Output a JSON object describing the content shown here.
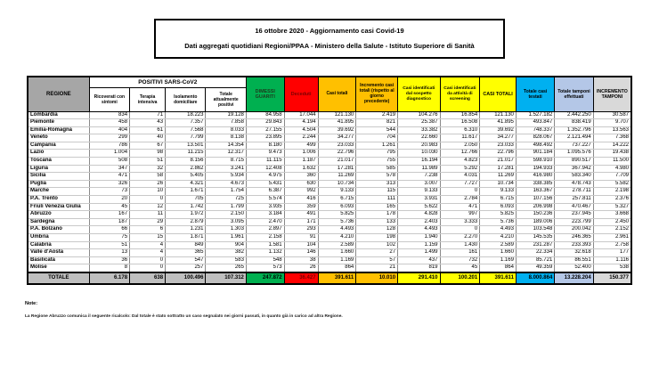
{
  "title": {
    "line1": "16 ottobre 2020 - Aggiornamento casi Covid-19",
    "line2": "Dati aggregati quotidiani Regioni/PPAA - Ministero della Salute - Istituto Superiore di Sanità"
  },
  "colors": {
    "header_gray": "#A6A6A6",
    "green": "#00B050",
    "red": "#FF0000",
    "orange": "#FFC000",
    "yellow": "#FFFF00",
    "cyan": "#00B0F0",
    "lavender": "#B4C7E7",
    "light_gray": "#D9D9D9",
    "totale_gray": "#BFBFBF"
  },
  "table": {
    "headers": {
      "regione": "REGIONE",
      "positivi_group": "POSITIVI SARS-CoV2",
      "sub": [
        "Ricoverati con sintomi",
        "Terapia intensiva",
        "Isolamento domiciliare",
        "Totale attualmente positivi"
      ],
      "dimessi": "DIMESSI GUARITI",
      "deceduti": "Deceduti",
      "casi_totali": "Casi totali",
      "incremento_casi": "Incremento casi totali (rispetto al giorno precedente)",
      "sospetto": "Casi identificati dal sospetto diagnostico",
      "screening": "Casi identificati da attività di screening",
      "casi_totali_2": "CASI TOTALI",
      "testati": "Totale casi testati",
      "tamponi": "Totale tamponi effettuati",
      "incremento_tamponi": "INCREMENTO TAMPONI"
    },
    "rows": [
      {
        "regione": "Lombardia",
        "values": [
          "834",
          "71",
          "18.223",
          "19.128",
          "84.958",
          "17.044",
          "121.130",
          "2.419",
          "104.276",
          "16.854",
          "121.130",
          "1.527.182",
          "2.442.250",
          "30.587"
        ]
      },
      {
        "regione": "Piemonte",
        "values": [
          "458",
          "43",
          "7.357",
          "7.858",
          "29.843",
          "4.194",
          "41.895",
          "821",
          "25.387",
          "16.508",
          "41.895",
          "493.847",
          "838.419",
          "9.707"
        ]
      },
      {
        "regione": "Emilia-Romagna",
        "values": [
          "404",
          "61",
          "7.568",
          "8.033",
          "27.155",
          "4.504",
          "39.692",
          "544",
          "33.382",
          "6.310",
          "39.692",
          "748.337",
          "1.352.796",
          "13.563"
        ]
      },
      {
        "regione": "Veneto",
        "values": [
          "299",
          "40",
          "7.799",
          "8.138",
          "23.895",
          "2.244",
          "34.277",
          "704",
          "22.660",
          "11.617",
          "34.277",
          "828.067",
          "2.121.494",
          "7.368"
        ]
      },
      {
        "regione": "Campania",
        "values": [
          "786",
          "67",
          "13.501",
          "14.354",
          "8.180",
          "499",
          "23.033",
          "1.261",
          "20.983",
          "2.050",
          "23.033",
          "498.492",
          "737.227",
          "14.222"
        ]
      },
      {
        "regione": "Lazio",
        "values": [
          "1.004",
          "98",
          "11.215",
          "12.317",
          "9.473",
          "1.006",
          "22.796",
          "795",
          "10.030",
          "12.766",
          "22.796",
          "901.184",
          "1.095.576",
          "19.438"
        ]
      },
      {
        "regione": "Toscana",
        "values": [
          "508",
          "51",
          "8.156",
          "8.715",
          "11.115",
          "1.187",
          "21.017",
          "755",
          "16.194",
          "4.823",
          "21.017",
          "598.910",
          "890.517",
          "11.500"
        ]
      },
      {
        "regione": "Liguria",
        "values": [
          "347",
          "32",
          "2.862",
          "3.241",
          "12.408",
          "1.632",
          "17.281",
          "585",
          "11.989",
          "5.292",
          "17.281",
          "194.933",
          "367.942",
          "4.980"
        ]
      },
      {
        "regione": "Sicilia",
        "values": [
          "471",
          "58",
          "5.405",
          "5.934",
          "4.975",
          "360",
          "11.269",
          "578",
          "7.238",
          "4.031",
          "11.269",
          "416.980",
          "583.340",
          "7.709"
        ]
      },
      {
        "regione": "Puglia",
        "values": [
          "326",
          "26",
          "4.321",
          "4.673",
          "5.431",
          "630",
          "10.734",
          "313",
          "3.007",
          "7.727",
          "10.734",
          "338.385",
          "478.743",
          "5.582"
        ]
      },
      {
        "regione": "Marche",
        "values": [
          "73",
          "10",
          "1.671",
          "1.754",
          "6.387",
          "992",
          "9.133",
          "115",
          "9.133",
          "0",
          "9.133",
          "163.367",
          "278.711",
          "2.198"
        ]
      },
      {
        "regione": "P.A. Trento",
        "values": [
          "20",
          "0",
          "705",
          "725",
          "5.574",
          "416",
          "6.715",
          "111",
          "3.931",
          "2.784",
          "6.715",
          "107.156",
          "257.811",
          "2.376"
        ]
      },
      {
        "regione": "Friuli Venezia Giulia",
        "values": [
          "45",
          "12",
          "1.742",
          "1.799",
          "3.935",
          "359",
          "6.093",
          "165",
          "5.622",
          "471",
          "6.093",
          "206.998",
          "470.467",
          "5.327"
        ]
      },
      {
        "regione": "Abruzzo",
        "values": [
          "167",
          "11",
          "1.972",
          "2.150",
          "3.184",
          "491",
          "5.825",
          "178",
          "4.828",
          "997",
          "5.825",
          "150.236",
          "237.945",
          "3.668"
        ]
      },
      {
        "regione": "Sardegna",
        "values": [
          "187",
          "29",
          "2.879",
          "3.095",
          "2.470",
          "171",
          "5.736",
          "133",
          "2.403",
          "3.333",
          "5.736",
          "189.006",
          "223.799",
          "2.450"
        ]
      },
      {
        "regione": "P.A. Bolzano",
        "values": [
          "66",
          "6",
          "1.231",
          "1.303",
          "2.897",
          "293",
          "4.493",
          "128",
          "4.493",
          "0",
          "4.493",
          "103.548",
          "200.042",
          "2.152"
        ]
      },
      {
        "regione": "Umbria",
        "values": [
          "75",
          "15",
          "1.871",
          "1.961",
          "2.158",
          "91",
          "4.210",
          "198",
          "1.940",
          "2.270",
          "4.210",
          "145.535",
          "246.365",
          "2.961"
        ]
      },
      {
        "regione": "Calabria",
        "values": [
          "51",
          "4",
          "849",
          "904",
          "1.581",
          "104",
          "2.589",
          "102",
          "1.159",
          "1.430",
          "2.589",
          "231.287",
          "233.393",
          "2.758"
        ]
      },
      {
        "regione": "Valle d'Aosta",
        "values": [
          "13",
          "4",
          "365",
          "382",
          "1.132",
          "146",
          "1.660",
          "27",
          "1.499",
          "161",
          "1.660",
          "22.334",
          "32.618",
          "177"
        ]
      },
      {
        "regione": "Basilicata",
        "values": [
          "36",
          "0",
          "547",
          "583",
          "548",
          "38",
          "1.169",
          "57",
          "437",
          "732",
          "1.169",
          "85.721",
          "86.551",
          "1.116"
        ]
      },
      {
        "regione": "Molise",
        "values": [
          "8",
          "0",
          "257",
          "265",
          "573",
          "26",
          "864",
          "21",
          "819",
          "45",
          "864",
          "49.359",
          "52.400",
          "538"
        ]
      }
    ],
    "totale": {
      "label": "TOTALE",
      "values": [
        "6.178",
        "638",
        "100.496",
        "107.312",
        "247.872",
        "36.427",
        "391.611",
        "10.010",
        "291.410",
        "100.201",
        "391.611",
        "8.000.864",
        "13.228.204",
        "150.377"
      ]
    }
  },
  "notes": {
    "label": "Note:",
    "text": "La Regione Abruzzo comunica il seguente ricalcolo: Dal totale è stato sottratto un caso segnalato nei giorni passati, in quanto già in carico ad altra Regione."
  }
}
